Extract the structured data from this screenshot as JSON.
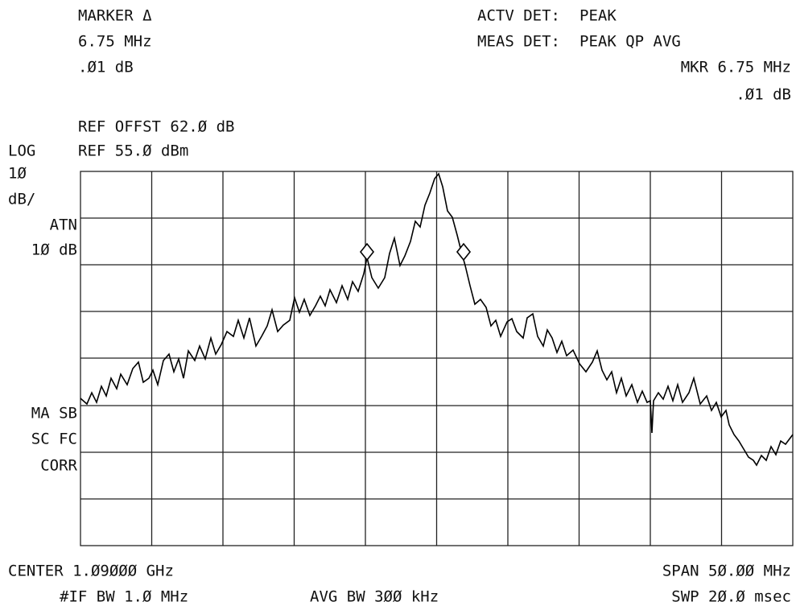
{
  "header": {
    "marker": "MARKER Δ",
    "marker_freq": "6.75 MHz",
    "marker_amp": ".Ø1 dB",
    "actv_det_label": "ACTV DET:",
    "actv_det": "PEAK",
    "meas_det_label": "MEAS DET:",
    "meas_det": "PEAK QP AVG",
    "mkr_freq": "MKR 6.75 MHz",
    "mkr_amp": ".Ø1 dB",
    "ref_offset": "REF OFFST 62.Ø dB",
    "scale": "LOG",
    "ref_level": "REF 55.Ø dBm"
  },
  "side": {
    "div1": "1Ø",
    "div2": "dB/",
    "atn1": "ATN",
    "atn2": "1Ø dB",
    "ma_sb": "MA SB",
    "sc_fc": "SC FC",
    "corr": "CORR"
  },
  "footer": {
    "center": "CENTER 1.Ø9ØØØ GHz",
    "span": "SPAN 5Ø.ØØ MHz",
    "if_bw": "#IF BW 1.Ø MHz",
    "avg_bw": "AVG BW 3ØØ kHz",
    "sweep": "SWP 2Ø.Ø msec"
  }
}
